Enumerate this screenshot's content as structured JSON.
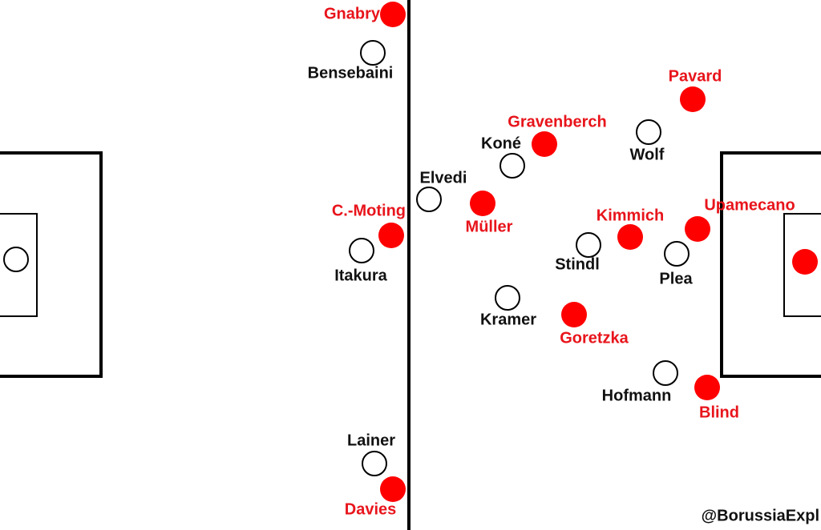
{
  "red_players": [
    "Gnabry",
    "Pavard",
    "Gravenberch",
    "Müller",
    "Kimmich",
    "Upamecano",
    "C.-Moting",
    "Goretzka",
    "Blind",
    "Davies"
  ],
  "white_players": [
    "Bensebaini",
    "Koné",
    "Wolf",
    "Elvedi",
    "Itakura",
    "Stindl",
    "Plea",
    "Kramer",
    "Hofmann",
    "Lainer"
  ],
  "credit": "@BorussiaExpl"
}
